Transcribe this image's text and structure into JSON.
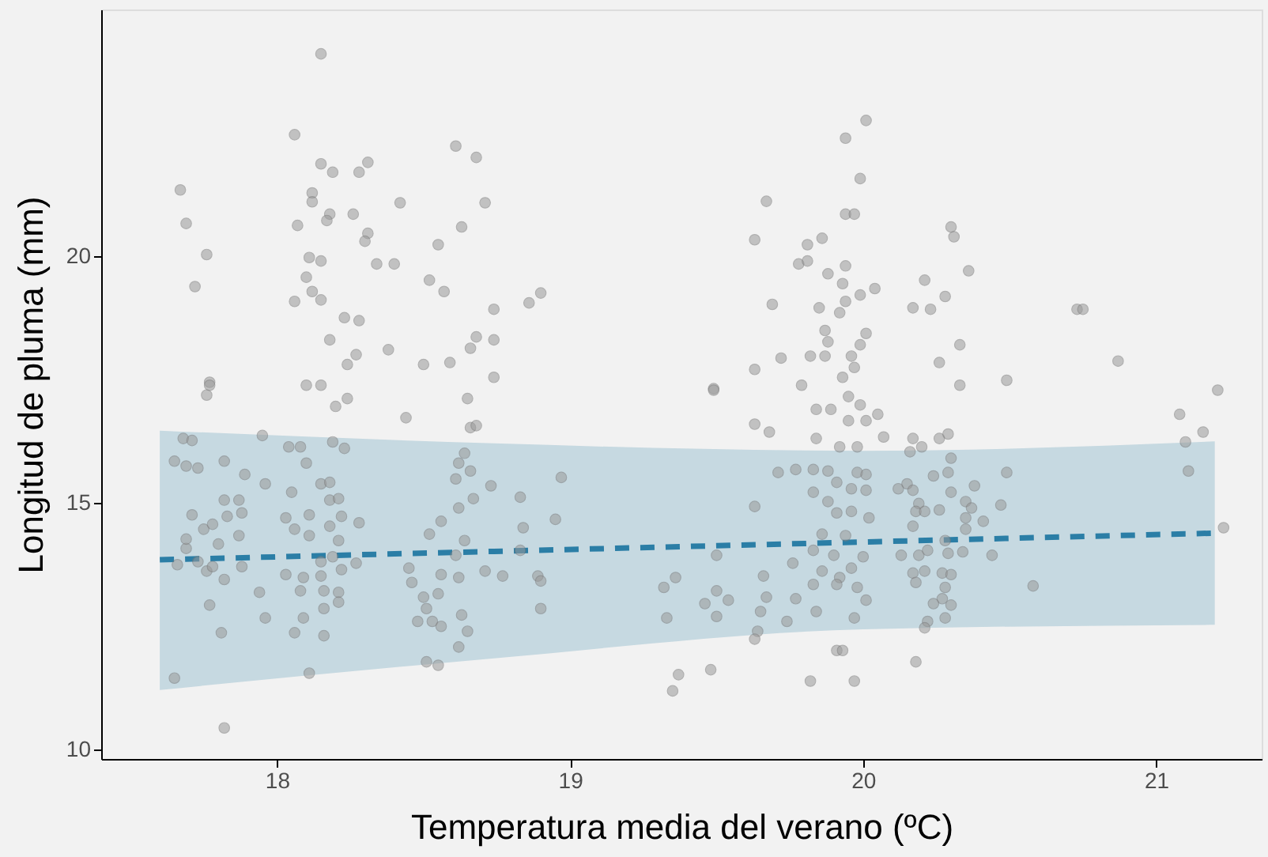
{
  "chart_data": {
    "type": "scatter",
    "xlabel": "Temperatura media del verano (ºC)",
    "ylabel": "Longitud de pluma (mm)",
    "xlim": [
      17.4,
      21.36
    ],
    "xticks": [
      18,
      19,
      20,
      21
    ],
    "ylim": [
      9.8,
      25
    ],
    "yticks": [
      10,
      15,
      20
    ],
    "grid": false,
    "series": [
      {
        "type": "line",
        "color": "#2b7ea6",
        "line_style": "dashed",
        "x": [
          17.6,
          18.74,
          20.0,
          21.2
        ],
        "values": [
          13.84,
          14.01,
          14.2,
          14.38
        ],
        "lower": [
          11.2,
          11.84,
          12.43,
          12.52
        ],
        "upper": [
          16.46,
          16.2,
          16.05,
          16.24
        ]
      },
      {
        "color": "#9a9a9a",
        "marker": "circle",
        "x": [
          18.15,
          18.06,
          17.67,
          17.69,
          17.76,
          17.72,
          18.15,
          18.19,
          18.28,
          18.31,
          18.12,
          18.12,
          18.18,
          18.17,
          18.07,
          18.26,
          18.31,
          18.3,
          18.42,
          18.34,
          18.4,
          18.11,
          18.15,
          18.1,
          18.12,
          18.15,
          18.06,
          18.23,
          18.28,
          18.18,
          18.27,
          18.24,
          18.38,
          18.61,
          18.68,
          18.71,
          18.63,
          18.55,
          18.52,
          18.57,
          18.5,
          18.59,
          18.68,
          18.66,
          17.77,
          18.1,
          18.15,
          20.01,
          19.94,
          19.99,
          19.94,
          19.97,
          19.67,
          19.63,
          19.81,
          19.86,
          19.78,
          19.81,
          19.94,
          19.88,
          19.93,
          19.99,
          20.04,
          19.69,
          19.85,
          19.92,
          19.94,
          19.87,
          19.88,
          20.01,
          19.99,
          19.72,
          19.82,
          19.87,
          19.96,
          19.97,
          19.93,
          19.63,
          19.79,
          19.49,
          18.86,
          18.9,
          18.74,
          18.74,
          18.74,
          20.3,
          20.31,
          20.36,
          20.21,
          20.28,
          20.17,
          20.23,
          20.73,
          20.75,
          20.33,
          20.26,
          20.49,
          20.87,
          21.21,
          20.33,
          17.82,
          17.65,
          18.11,
          17.81,
          17.77,
          17.96,
          17.94,
          17.82,
          17.76,
          17.66,
          17.73,
          17.78,
          17.88,
          17.69,
          17.8,
          17.87,
          17.69,
          17.75,
          17.71,
          17.78,
          17.83,
          17.82,
          17.87,
          17.88,
          17.65,
          17.69,
          17.73,
          17.82,
          17.89,
          17.96,
          17.68,
          17.71,
          17.95,
          17.76,
          17.77,
          18.04,
          18.08,
          18.1,
          18.05,
          18.19,
          18.23,
          18.15,
          18.18,
          18.18,
          18.21,
          18.11,
          18.03,
          18.06,
          18.11,
          18.18,
          18.22,
          18.28,
          18.21,
          18.15,
          18.19,
          18.27,
          18.03,
          18.09,
          18.15,
          18.22,
          18.08,
          18.16,
          18.21,
          18.16,
          18.21,
          18.09,
          18.06,
          18.16,
          18.44,
          18.2,
          18.24,
          18.65,
          18.66,
          18.68,
          18.64,
          18.62,
          18.66,
          18.61,
          18.67,
          18.62,
          18.52,
          18.56,
          18.64,
          18.61,
          18.45,
          18.46,
          18.56,
          18.62,
          18.71,
          18.5,
          18.51,
          18.55,
          18.48,
          18.53,
          18.56,
          18.63,
          18.65,
          18.62,
          18.51,
          18.55,
          18.73,
          18.83,
          18.97,
          18.84,
          18.95,
          18.83,
          18.77,
          18.89,
          18.9,
          18.9,
          19.32,
          19.36,
          19.33,
          19.37,
          19.48,
          19.35,
          19.5,
          19.5,
          19.46,
          19.5,
          19.54,
          19.63,
          19.71,
          19.77,
          19.66,
          19.67,
          19.65,
          19.64,
          19.63,
          19.76,
          19.77,
          19.74,
          19.63,
          19.68,
          19.49,
          19.84,
          19.89,
          19.84,
          19.92,
          19.98,
          19.83,
          19.83,
          19.88,
          19.91,
          19.98,
          20.01,
          19.96,
          20.01,
          19.88,
          19.91,
          19.96,
          20.02,
          19.86,
          19.94,
          19.83,
          19.9,
          20.0,
          19.86,
          19.96,
          19.92,
          19.83,
          19.91,
          19.98,
          20.01,
          19.84,
          19.97,
          19.91,
          19.93,
          19.82,
          19.97,
          19.95,
          19.99,
          20.01,
          19.95,
          20.05,
          20.07,
          20.17,
          20.2,
          20.16,
          20.26,
          20.29,
          20.3,
          20.24,
          20.29,
          20.49,
          20.12,
          20.15,
          20.17,
          20.3,
          20.38,
          20.19,
          20.18,
          20.21,
          20.26,
          20.35,
          20.37,
          20.47,
          20.35,
          20.41,
          20.17,
          20.35,
          20.28,
          20.13,
          20.19,
          20.22,
          20.29,
          20.34,
          20.44,
          20.17,
          20.21,
          20.27,
          20.3,
          20.18,
          20.28,
          20.27,
          20.3,
          20.24,
          20.28,
          20.22,
          20.21,
          20.18,
          20.58,
          21.08,
          21.16,
          21.1,
          21.11,
          21.23
        ],
        "values": [
          24.1,
          22.46,
          21.34,
          20.66,
          20.03,
          19.38,
          21.87,
          21.7,
          21.7,
          21.9,
          21.28,
          21.1,
          20.85,
          20.72,
          20.62,
          20.85,
          20.46,
          20.3,
          21.08,
          19.84,
          19.84,
          19.97,
          19.9,
          19.57,
          19.28,
          19.11,
          19.08,
          18.75,
          18.69,
          18.3,
          18.0,
          17.8,
          18.1,
          22.23,
          22.0,
          21.08,
          20.59,
          20.23,
          19.51,
          19.28,
          17.8,
          17.84,
          18.36,
          18.13,
          17.44,
          17.38,
          17.38,
          22.75,
          22.39,
          21.57,
          20.85,
          20.85,
          21.11,
          20.33,
          20.23,
          20.36,
          19.84,
          19.9,
          19.8,
          19.64,
          19.44,
          19.21,
          19.34,
          19.02,
          18.95,
          18.85,
          19.08,
          18.49,
          18.26,
          18.43,
          18.2,
          17.93,
          17.97,
          17.97,
          17.97,
          17.74,
          17.54,
          17.7,
          17.38,
          17.31,
          19.05,
          19.25,
          18.92,
          18.3,
          17.54,
          20.59,
          20.39,
          19.7,
          19.51,
          19.18,
          18.95,
          18.92,
          18.92,
          18.92,
          18.2,
          17.84,
          17.48,
          17.87,
          17.28,
          17.38,
          10.43,
          11.44,
          11.54,
          12.36,
          12.92,
          12.66,
          13.18,
          13.44,
          13.61,
          13.74,
          13.8,
          13.7,
          13.7,
          14.07,
          14.16,
          14.33,
          14.26,
          14.46,
          14.75,
          14.56,
          14.72,
          15.05,
          15.05,
          14.79,
          15.84,
          15.74,
          15.7,
          15.84,
          15.57,
          15.38,
          16.3,
          16.26,
          16.36,
          17.18,
          17.38,
          16.13,
          16.13,
          15.8,
          15.21,
          16.23,
          16.1,
          15.38,
          15.41,
          15.05,
          15.08,
          14.75,
          14.69,
          14.46,
          14.33,
          14.52,
          14.72,
          14.59,
          14.23,
          13.8,
          13.9,
          13.77,
          13.54,
          13.48,
          13.51,
          13.64,
          13.21,
          13.21,
          13.18,
          12.85,
          12.98,
          12.66,
          12.36,
          12.3,
          16.72,
          16.95,
          17.11,
          17.11,
          16.52,
          16.56,
          16.0,
          15.8,
          15.64,
          15.48,
          15.08,
          14.89,
          14.36,
          14.62,
          14.23,
          13.93,
          13.67,
          13.38,
          13.54,
          13.48,
          13.61,
          13.08,
          12.85,
          13.15,
          12.59,
          12.59,
          12.49,
          12.72,
          12.39,
          12.07,
          11.77,
          11.7,
          15.34,
          15.11,
          15.51,
          14.49,
          14.66,
          14.03,
          13.51,
          13.51,
          13.41,
          12.85,
          13.28,
          13.48,
          12.66,
          11.51,
          11.61,
          11.18,
          13.93,
          13.21,
          12.95,
          12.69,
          13.02,
          14.92,
          15.61,
          15.67,
          13.51,
          13.08,
          12.79,
          12.39,
          12.23,
          13.77,
          13.05,
          12.59,
          16.59,
          16.43,
          17.28,
          16.89,
          16.89,
          16.3,
          16.13,
          16.13,
          15.67,
          15.21,
          15.64,
          15.41,
          15.61,
          15.57,
          15.28,
          15.25,
          15.02,
          14.79,
          14.82,
          14.69,
          14.36,
          14.33,
          14.03,
          13.93,
          13.9,
          13.61,
          13.67,
          13.48,
          13.34,
          13.34,
          13.28,
          13.02,
          12.79,
          12.66,
          12.0,
          12.0,
          11.38,
          11.38,
          17.15,
          16.98,
          16.66,
          16.66,
          16.79,
          16.33,
          16.3,
          16.13,
          16.03,
          16.3,
          16.39,
          15.9,
          15.54,
          15.61,
          15.61,
          15.28,
          15.38,
          15.25,
          15.21,
          15.34,
          14.98,
          14.82,
          14.82,
          14.85,
          15.02,
          14.89,
          14.95,
          14.69,
          14.62,
          14.52,
          14.46,
          14.23,
          13.93,
          13.93,
          14.03,
          13.97,
          14.0,
          13.93,
          13.57,
          13.61,
          13.57,
          13.54,
          13.38,
          13.28,
          13.05,
          12.92,
          12.95,
          12.66,
          12.59,
          12.46,
          11.77,
          13.31,
          16.79,
          16.43,
          16.23,
          15.64,
          14.49
        ]
      }
    ]
  }
}
